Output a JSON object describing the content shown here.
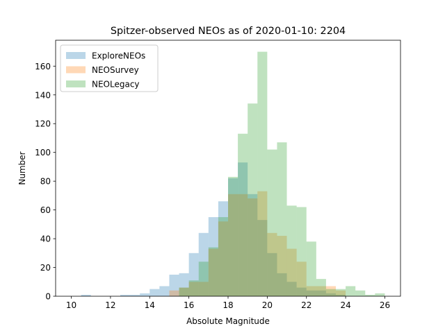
{
  "chart_data": {
    "type": "bar",
    "title": "Spitzer-observed NEOs as of 2020-01-10: 2204",
    "xlabel": "Absolute Magnitude",
    "ylabel": "Number",
    "xlim": [
      9.2,
      26.8
    ],
    "ylim": [
      0,
      178
    ],
    "xticks": [
      10,
      12,
      14,
      16,
      18,
      20,
      22,
      24,
      26
    ],
    "yticks": [
      0,
      20,
      40,
      60,
      80,
      100,
      120,
      140,
      160
    ],
    "grid": false,
    "legend_position": "top-left",
    "bin_width": 0.5,
    "series": [
      {
        "name": "ExploreNEOs",
        "color": "#1f77b4",
        "bins": [
          {
            "x0": 10.5,
            "v": 1
          },
          {
            "x0": 12.5,
            "v": 1
          },
          {
            "x0": 13.0,
            "v": 1
          },
          {
            "x0": 13.5,
            "v": 2
          },
          {
            "x0": 14.0,
            "v": 5
          },
          {
            "x0": 14.5,
            "v": 7
          },
          {
            "x0": 15.0,
            "v": 15
          },
          {
            "x0": 15.5,
            "v": 16
          },
          {
            "x0": 16.0,
            "v": 30
          },
          {
            "x0": 16.5,
            "v": 44
          },
          {
            "x0": 17.0,
            "v": 55
          },
          {
            "x0": 17.5,
            "v": 66
          },
          {
            "x0": 18.0,
            "v": 82
          },
          {
            "x0": 18.5,
            "v": 93
          },
          {
            "x0": 19.0,
            "v": 71
          },
          {
            "x0": 19.5,
            "v": 53
          },
          {
            "x0": 20.0,
            "v": 30
          },
          {
            "x0": 20.5,
            "v": 16
          },
          {
            "x0": 21.0,
            "v": 10
          },
          {
            "x0": 21.5,
            "v": 6
          },
          {
            "x0": 22.0,
            "v": 4
          },
          {
            "x0": 22.5,
            "v": 4
          },
          {
            "x0": 23.0,
            "v": 2
          },
          {
            "x0": 23.5,
            "v": 1
          }
        ]
      },
      {
        "name": "NEOSurvey",
        "color": "#ff7f0e",
        "bins": [
          {
            "x0": 15.0,
            "v": 4
          },
          {
            "x0": 15.5,
            "v": 6
          },
          {
            "x0": 16.0,
            "v": 10
          },
          {
            "x0": 16.5,
            "v": 10
          },
          {
            "x0": 17.0,
            "v": 33
          },
          {
            "x0": 17.5,
            "v": 52
          },
          {
            "x0": 18.0,
            "v": 71
          },
          {
            "x0": 18.5,
            "v": 71
          },
          {
            "x0": 19.0,
            "v": 68
          },
          {
            "x0": 19.5,
            "v": 73
          },
          {
            "x0": 20.0,
            "v": 44
          },
          {
            "x0": 20.5,
            "v": 42
          },
          {
            "x0": 21.0,
            "v": 33
          },
          {
            "x0": 21.5,
            "v": 24
          },
          {
            "x0": 22.0,
            "v": 7
          },
          {
            "x0": 22.5,
            "v": 7
          },
          {
            "x0": 23.0,
            "v": 7
          },
          {
            "x0": 23.5,
            "v": 4
          }
        ]
      },
      {
        "name": "NEOLegacy",
        "color": "#2ca02c",
        "bins": [
          {
            "x0": 15.5,
            "v": 6
          },
          {
            "x0": 16.0,
            "v": 11
          },
          {
            "x0": 16.5,
            "v": 24
          },
          {
            "x0": 17.0,
            "v": 34
          },
          {
            "x0": 17.5,
            "v": 55
          },
          {
            "x0": 18.0,
            "v": 83
          },
          {
            "x0": 18.5,
            "v": 113
          },
          {
            "x0": 19.0,
            "v": 134
          },
          {
            "x0": 19.5,
            "v": 170
          },
          {
            "x0": 20.0,
            "v": 102
          },
          {
            "x0": 20.5,
            "v": 107
          },
          {
            "x0": 21.0,
            "v": 63
          },
          {
            "x0": 21.5,
            "v": 62
          },
          {
            "x0": 22.0,
            "v": 38
          },
          {
            "x0": 22.5,
            "v": 12
          },
          {
            "x0": 23.0,
            "v": 5
          },
          {
            "x0": 23.5,
            "v": 5
          },
          {
            "x0": 24.0,
            "v": 7
          },
          {
            "x0": 24.5,
            "v": 4
          },
          {
            "x0": 25.0,
            "v": 1
          },
          {
            "x0": 25.5,
            "v": 2
          }
        ]
      }
    ]
  }
}
